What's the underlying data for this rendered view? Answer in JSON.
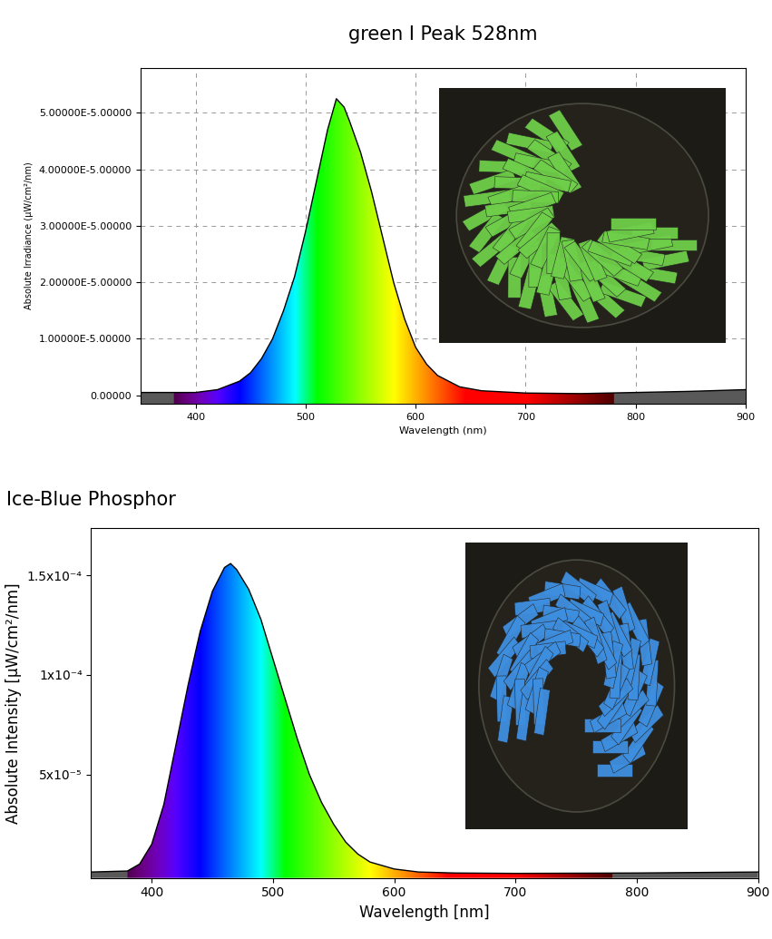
{
  "chart_data": [
    {
      "type": "line",
      "title": "green I Peak 528nm",
      "x_label": "Wavelength (nm)",
      "y_label": "Absolute Irradiance (µW/cm²/nm)",
      "x": [
        350,
        380,
        400,
        420,
        440,
        450,
        460,
        470,
        480,
        490,
        500,
        510,
        520,
        528,
        535,
        540,
        550,
        560,
        570,
        580,
        590,
        600,
        610,
        620,
        640,
        660,
        700,
        750,
        800,
        850,
        900
      ],
      "values": [
        5e-07,
        5e-07,
        5e-07,
        1e-06,
        2.5e-06,
        4e-06,
        6.5e-06,
        1e-05,
        1.5e-05,
        2.1e-05,
        2.9e-05,
        3.8e-05,
        4.7e-05,
        5.25e-05,
        5.1e-05,
        4.85e-05,
        4.3e-05,
        3.6e-05,
        2.8e-05,
        2e-05,
        1.35e-05,
        8.5e-06,
        5.5e-06,
        3.5e-06,
        1.5e-06,
        8e-07,
        4e-07,
        3e-07,
        5e-07,
        7e-07,
        1e-06
      ],
      "color": "#000000",
      "xlim": [
        350,
        900
      ],
      "xticks": [
        400,
        500,
        600,
        700,
        800,
        900
      ],
      "ylim": [
        -1.5e-06,
        5.8e-05
      ],
      "yticks": [
        {
          "value": 0,
          "label": "0.00000"
        },
        {
          "value": 1e-05,
          "label": "1.00000E-5.00000"
        },
        {
          "value": 2e-05,
          "label": "2.00000E-5.00000"
        },
        {
          "value": 3e-05,
          "label": "3.00000E-5.00000"
        },
        {
          "value": 4e-05,
          "label": "4.00000E-5.00000"
        },
        {
          "value": 5e-05,
          "label": "5.00000E-5.00000"
        }
      ],
      "grid": true
    },
    {
      "type": "line",
      "title": "Ice-Blue Phosphor",
      "x_label": "Wavelength [nm]",
      "y_label": "Absolute Intensity [µW/cm²/nm]",
      "x": [
        350,
        380,
        390,
        400,
        410,
        420,
        430,
        440,
        450,
        460,
        465,
        470,
        480,
        490,
        500,
        510,
        520,
        530,
        540,
        550,
        560,
        570,
        580,
        600,
        620,
        650,
        700,
        800,
        900
      ],
      "values": [
        1e-06,
        1.5e-06,
        5e-06,
        1.5e-05,
        3.5e-05,
        6.5e-05,
        9.5e-05,
        0.000122,
        0.000142,
        0.000154,
        0.000156,
        0.000153,
        0.000143,
        0.000128,
        0.000108,
        8.8e-05,
        6.8e-05,
        5e-05,
        3.6e-05,
        2.5e-05,
        1.6e-05,
        1e-05,
        6e-06,
        2.5e-06,
        1e-06,
        5e-07,
        3e-07,
        5e-07,
        1e-06
      ],
      "color": "#000000",
      "xlim": [
        350,
        900
      ],
      "xticks": [
        400,
        500,
        600,
        700,
        800,
        900
      ],
      "ylim": [
        -2e-06,
        0.000174
      ],
      "yticks": [
        {
          "value": 5e-05,
          "label": "5x10⁻⁵"
        },
        {
          "value": 0.0001,
          "label": "1x10⁻⁴"
        },
        {
          "value": 0.00015,
          "label": "1.5x10⁻⁴"
        }
      ],
      "grid": false
    }
  ]
}
